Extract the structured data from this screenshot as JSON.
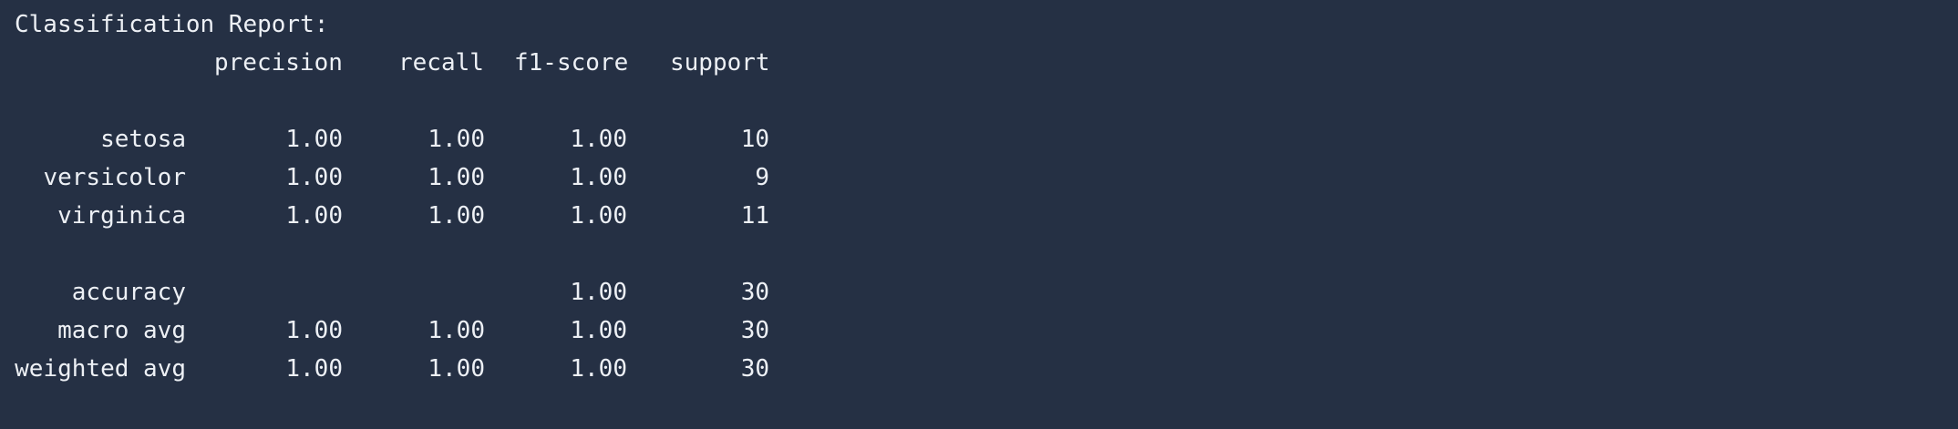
{
  "report": {
    "title": "Classification Report:",
    "headers": {
      "precision": "precision",
      "recall": "recall",
      "f1": "f1-score",
      "support": "support"
    },
    "class_rows": [
      {
        "label": "setosa",
        "precision": "1.00",
        "recall": "1.00",
        "f1": "1.00",
        "support": "10"
      },
      {
        "label": "versicolor",
        "precision": "1.00",
        "recall": "1.00",
        "f1": "1.00",
        "support": "9"
      },
      {
        "label": "virginica",
        "precision": "1.00",
        "recall": "1.00",
        "f1": "1.00",
        "support": "11"
      }
    ],
    "accuracy_row": {
      "label": "accuracy",
      "f1": "1.00",
      "support": "30"
    },
    "avg_rows": [
      {
        "label": "macro avg",
        "precision": "1.00",
        "recall": "1.00",
        "f1": "1.00",
        "support": "30"
      },
      {
        "label": "weighted avg",
        "precision": "1.00",
        "recall": "1.00",
        "f1": "1.00",
        "support": "30"
      }
    ]
  },
  "colors": {
    "background": "#253044",
    "text": "#edf0f5"
  }
}
